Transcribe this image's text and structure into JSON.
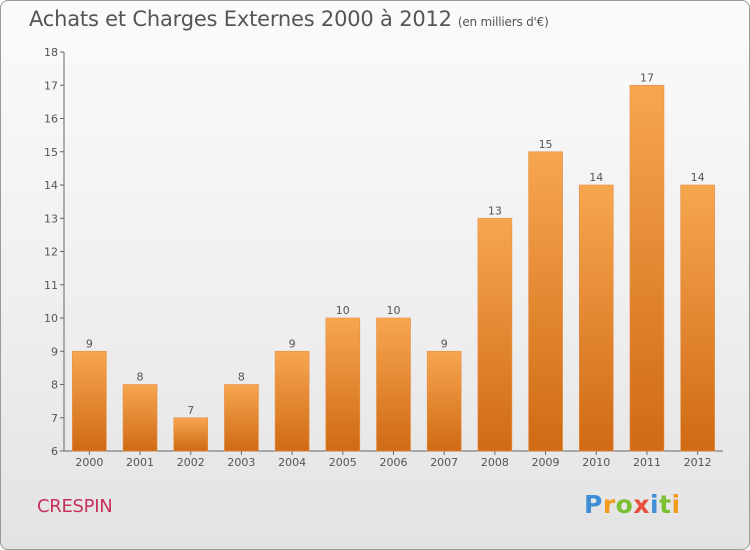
{
  "header": {
    "title": "Achats et Charges Externes 2000 à 2012",
    "subtitle": "(en milliers d'€)"
  },
  "footer": {
    "commune": "CRESPIN",
    "logo": [
      "P",
      "r",
      "o",
      "x",
      "i",
      "t",
      "i"
    ]
  },
  "colors": {
    "bar_top": "#f7a650",
    "bar_bottom": "#d06a14",
    "commune": "#c8305a",
    "text": "#555555"
  },
  "chart_data": {
    "type": "bar",
    "title": "Achats et Charges Externes 2000 à 2012",
    "subtitle": "(en milliers d'€)",
    "categories": [
      "2000",
      "2001",
      "2002",
      "2003",
      "2004",
      "2005",
      "2006",
      "2007",
      "2008",
      "2009",
      "2010",
      "2011",
      "2012"
    ],
    "values": [
      9,
      8,
      7,
      8,
      9,
      10,
      10,
      9,
      13,
      15,
      14,
      17,
      14
    ],
    "ylim": [
      6,
      18
    ],
    "yticks": [
      6,
      7,
      8,
      9,
      10,
      11,
      12,
      13,
      14,
      15,
      16,
      17,
      18
    ],
    "grid": false,
    "legend": "none"
  }
}
